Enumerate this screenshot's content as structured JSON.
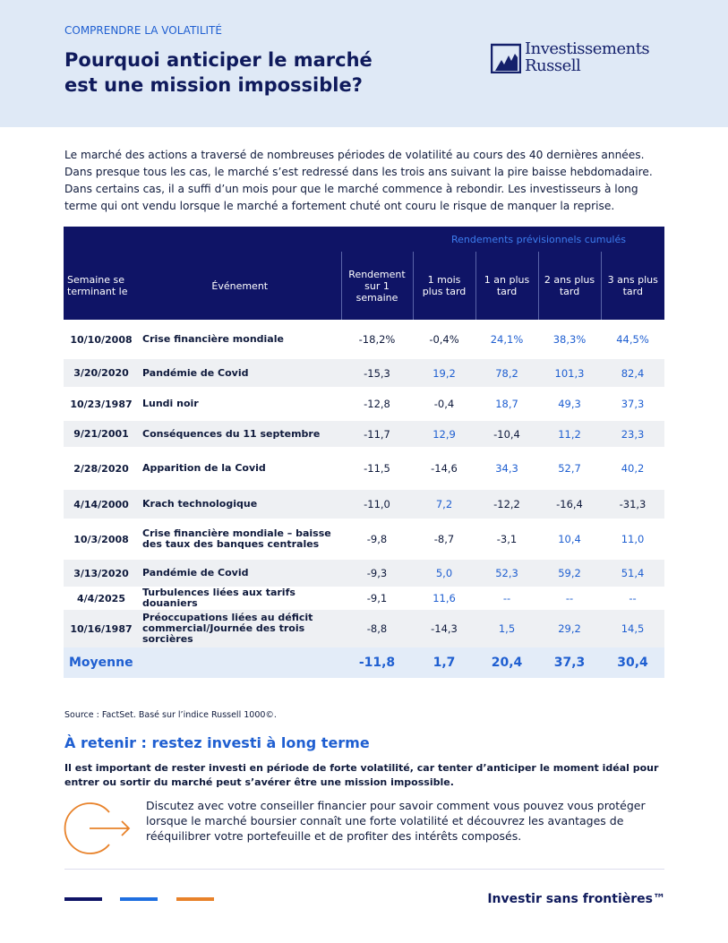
{
  "header": {
    "kicker": "COMPRENDRE LA VOLATILITÉ",
    "title_lines": [
      "Pourquoi anticiper le marché",
      "est une mission impossible?"
    ],
    "logo": [
      "Investissements",
      "Russell"
    ]
  },
  "intro": "Le marché des actions a traversé de nombreuses périodes de volatilité au cours des 40 dernières années. Dans presque tous les cas, le marché s’est redressé dans les trois ans suivant la pire baisse hebdomadaire. Dans certains cas, il a suffi d’un mois pour que le marché commence à rebondir. Les investisseurs à long terme qui ont vendu lorsque le marché a fortement chuté ont couru le risque de manquer la reprise.",
  "table": {
    "group_header": "Rendements prévisionnels cumulés",
    "columns": [
      "Semaine se terminant le",
      "Événement",
      "Rendement sur 1 semaine",
      "1 mois plus tard",
      "1 an plus tard",
      "2 ans plus tard",
      "3 ans plus tard"
    ],
    "rows": [
      [
        "10/10/2008",
        "Crise financière mondiale",
        "-18,2%",
        "-0,4%",
        "24,1%",
        "38,3%",
        "44,5%"
      ],
      [
        "3/20/2020",
        "Pandémie de Covid",
        "-15,3",
        "19,2",
        "78,2",
        "101,3",
        "82,4"
      ],
      [
        "10/23/1987",
        "Lundi noir",
        "-12,8",
        "-0,4",
        "18,7",
        "49,3",
        "37,3"
      ],
      [
        "9/21/2001",
        "Conséquences du 11 septembre",
        "-11,7",
        "12,9",
        "-10,4",
        "11,2",
        "23,3"
      ],
      [
        "2/28/2020",
        "Apparition de la Covid",
        "-11,5",
        "-14,6",
        "34,3",
        "52,7",
        "40,2"
      ],
      [
        "4/14/2000",
        "Krach technologique",
        "-11,0",
        "7,2",
        "-12,2",
        "-16,4",
        "-31,3"
      ],
      [
        "10/3/2008",
        "Crise financière mondiale – baisse des taux des banques centrales",
        "-9,8",
        "-8,7",
        "-3,1",
        "10,4",
        "11,0"
      ],
      [
        "3/13/2020",
        "Pandémie de Covid",
        "-9,3",
        "5,0",
        "52,3",
        "59,2",
        "51,4"
      ],
      [
        "4/4/2025",
        "Turbulences liées aux tarifs douaniers",
        "-9,1",
        "11,6",
        "--",
        "--",
        "--"
      ],
      [
        "10/16/1987",
        "Préoccupations liées au déficit commercial/Journée des trois sorcières",
        "-8,8",
        "-14,3",
        "1,5",
        "29,2",
        "14,5"
      ]
    ],
    "average": [
      "Moyenne",
      "-11,8",
      "1,7",
      "20,4",
      "37,3",
      "30,4"
    ]
  },
  "source": "Source : FactSet. Basé sur l’indice Russell 1000©.",
  "takeaway": {
    "title": "À retenir : restez investi à long terme",
    "bold": "Il est important de rester investi en période de forte volatilité, car tenter d’anticiper le moment idéal pour entrer ou sortir du marché peut s’avérer être une mission impossible.",
    "text": "Discutez avec votre conseiller financier pour savoir comment vous pouvez vous protéger lorsque le marché boursier connaît une forte volatilité et découvrez les avantages de rééquilibrer votre portefeuille et de profiter des intérêts composés."
  },
  "footer": {
    "tagline": "Investir sans frontières™"
  }
}
